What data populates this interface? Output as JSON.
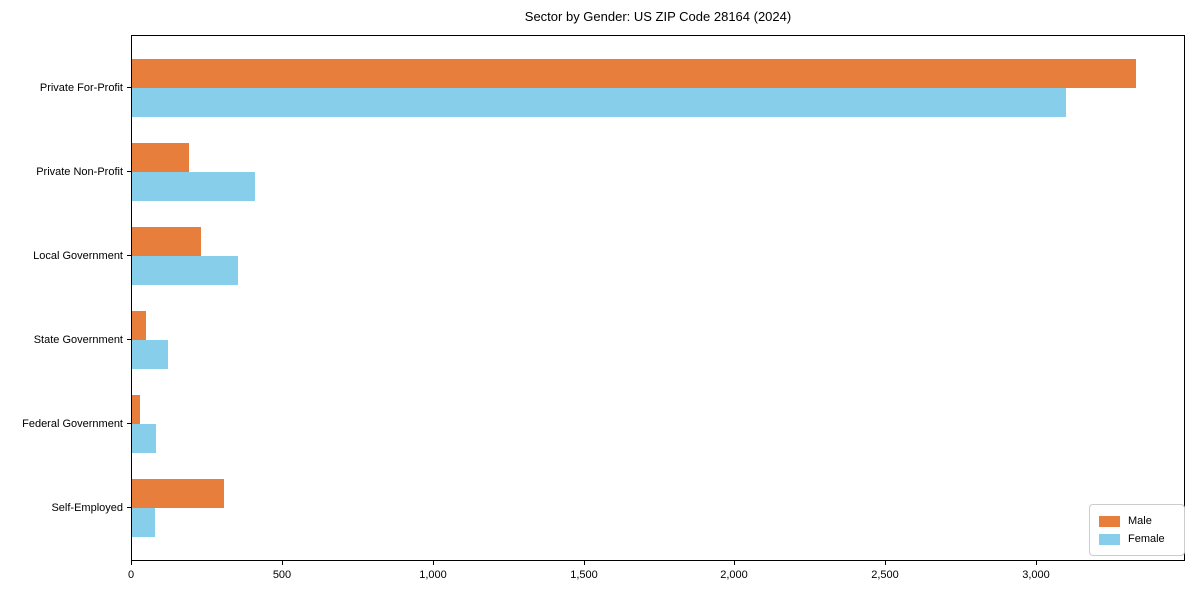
{
  "chart_data": {
    "type": "bar",
    "orientation": "horizontal",
    "title": "Sector by Gender: US ZIP Code 28164 (2024)",
    "categories": [
      "Private For-Profit",
      "Private Non-Profit",
      "Local Government",
      "State Government",
      "Federal Government",
      "Self-Employed"
    ],
    "series": [
      {
        "name": "Male",
        "color": "#E87E3B",
        "values": [
          3330,
          190,
          230,
          45,
          28,
          306
        ]
      },
      {
        "name": "Female",
        "color": "#87CEEB",
        "values": [
          3100,
          408,
          353,
          118,
          80,
          76
        ]
      }
    ],
    "xlabel": "",
    "ylabel": "",
    "xlim": [
      0,
      3490
    ],
    "x_ticks": [
      0,
      500,
      1000,
      1500,
      2000,
      2500,
      3000
    ],
    "x_tick_labels": [
      "0",
      "500",
      "1,000",
      "1,500",
      "2,000",
      "2,500",
      "3,000"
    ],
    "grid": false,
    "legend_position": "lower right",
    "colors": {
      "axis": "#000000",
      "background": "#ffffff",
      "legend_border": "#cccccc"
    }
  }
}
